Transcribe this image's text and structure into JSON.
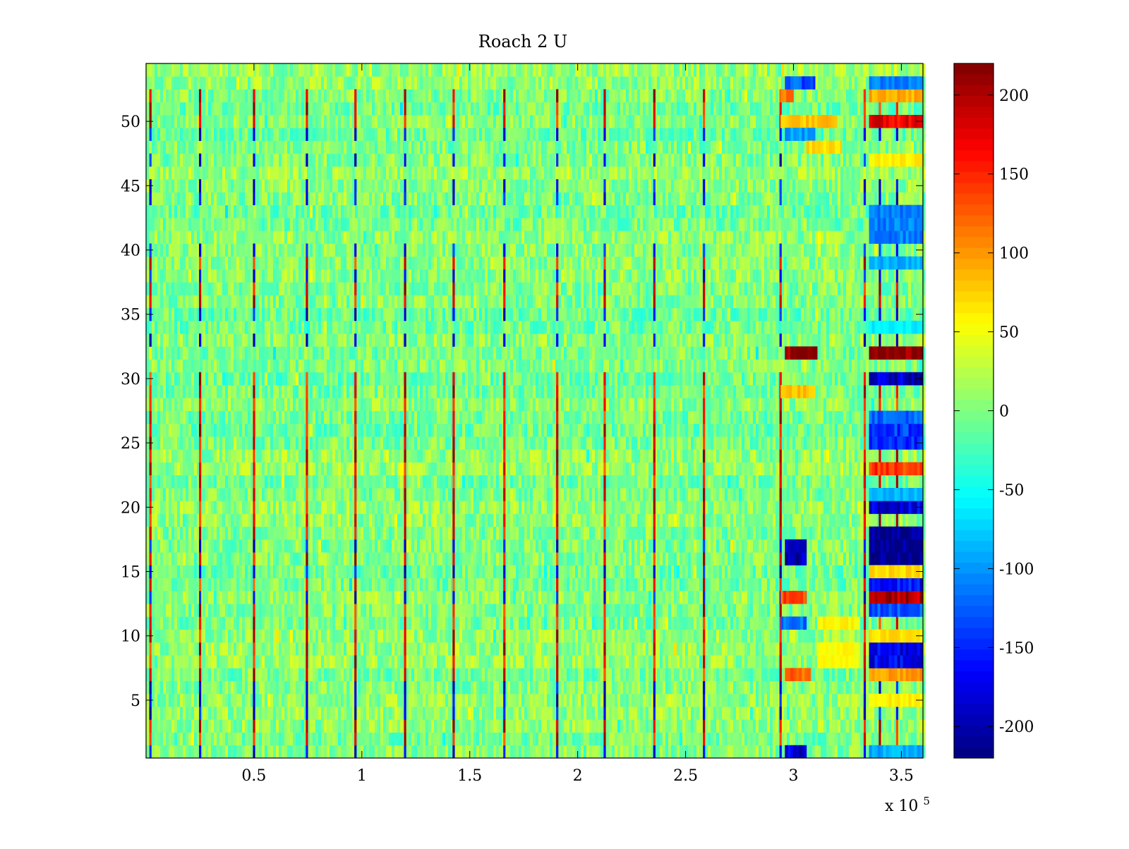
{
  "chart_data": {
    "type": "heatmap",
    "title": "Roach 2 U",
    "xlabel": "",
    "ylabel": "",
    "x_multiplier_label": "x 10",
    "x_multiplier_exponent": "5",
    "xlim": [
      0,
      3.6
    ],
    "ylim": [
      0.5,
      54.5
    ],
    "x_ticks": [
      0.5,
      1,
      1.5,
      2,
      2.5,
      3,
      3.5
    ],
    "x_tick_labels": [
      "0.5",
      "1",
      "1.5",
      "2",
      "2.5",
      "3",
      "3.5"
    ],
    "y_ticks": [
      5,
      10,
      15,
      20,
      25,
      30,
      35,
      40,
      45,
      50
    ],
    "y_tick_labels": [
      "5",
      "10",
      "15",
      "20",
      "25",
      "30",
      "35",
      "40",
      "45",
      "50"
    ],
    "rows": 54,
    "colormap": "jet",
    "clim": [
      -220,
      220
    ],
    "colorbar_ticks": [
      200,
      150,
      100,
      50,
      0,
      -50,
      -100,
      -150,
      -200
    ],
    "colorbar_tick_labels": [
      "200",
      "150",
      "100",
      "50",
      "0",
      "-50",
      "-100",
      "-150",
      "-200"
    ],
    "background_value_range": [
      -40,
      40
    ],
    "periodic_spike_columns_x": [
      0.02,
      0.25,
      0.5,
      0.745,
      0.97,
      1.2,
      1.425,
      1.66,
      1.905,
      2.125,
      2.355,
      2.585
    ],
    "late_spike_columns_x": [
      2.94,
      3.33,
      3.4,
      3.48
    ],
    "spike_rows_positive": [
      2,
      3,
      7,
      8,
      9,
      10,
      11,
      12,
      14,
      16,
      18,
      19,
      20,
      21,
      22,
      23,
      24,
      25,
      26,
      27,
      28,
      29,
      30,
      36,
      37,
      39,
      50,
      51,
      52
    ],
    "spike_rows_negative": [
      1,
      4,
      5,
      6,
      13,
      15,
      17,
      33,
      35,
      38,
      40,
      44,
      45,
      47,
      49
    ],
    "blocks": [
      {
        "row_from": 32,
        "row_to": 32,
        "x_from": 2.96,
        "x_to": 3.11,
        "value": 220
      },
      {
        "row_from": 32,
        "row_to": 32,
        "x_from": 3.35,
        "x_to": 3.6,
        "value": 220
      },
      {
        "row_from": 16,
        "row_to": 18,
        "x_from": 3.35,
        "x_to": 3.6,
        "value": -220
      },
      {
        "row_from": 16,
        "row_to": 17,
        "x_from": 2.96,
        "x_to": 3.06,
        "value": -200
      },
      {
        "row_from": 30,
        "row_to": 30,
        "x_from": 3.35,
        "x_to": 3.6,
        "value": -190
      },
      {
        "row_from": 20,
        "row_to": 20,
        "x_from": 3.35,
        "x_to": 3.6,
        "value": -180
      },
      {
        "row_from": 13,
        "row_to": 13,
        "x_from": 3.35,
        "x_to": 3.6,
        "value": 200
      },
      {
        "row_from": 14,
        "row_to": 14,
        "x_from": 3.35,
        "x_to": 3.6,
        "value": -160
      },
      {
        "row_from": 13,
        "row_to": 13,
        "x_from": 2.94,
        "x_to": 3.06,
        "value": 130
      },
      {
        "row_from": 23,
        "row_to": 23,
        "x_from": 3.35,
        "x_to": 3.6,
        "value": 140
      },
      {
        "row_from": 50,
        "row_to": 50,
        "x_from": 3.35,
        "x_to": 3.6,
        "value": 170
      },
      {
        "row_from": 50,
        "row_to": 50,
        "x_from": 2.94,
        "x_to": 3.2,
        "value": 80
      },
      {
        "row_from": 52,
        "row_to": 52,
        "x_from": 3.35,
        "x_to": 3.6,
        "value": 90
      },
      {
        "row_from": 52,
        "row_to": 52,
        "x_from": 2.94,
        "x_to": 3.0,
        "value": 110
      },
      {
        "row_from": 7,
        "row_to": 7,
        "x_from": 2.96,
        "x_to": 3.08,
        "value": 120
      },
      {
        "row_from": 7,
        "row_to": 7,
        "x_from": 3.35,
        "x_to": 3.6,
        "value": 100
      },
      {
        "row_from": 8,
        "row_to": 9,
        "x_from": 3.35,
        "x_to": 3.6,
        "value": -170
      },
      {
        "row_from": 10,
        "row_to": 10,
        "x_from": 3.35,
        "x_to": 3.6,
        "value": 70
      },
      {
        "row_from": 29,
        "row_to": 29,
        "x_from": 2.94,
        "x_to": 3.1,
        "value": 80
      },
      {
        "row_from": 26,
        "row_to": 26,
        "x_from": 3.35,
        "x_to": 3.6,
        "value": -140
      },
      {
        "row_from": 27,
        "row_to": 27,
        "x_from": 3.35,
        "x_to": 3.6,
        "value": -120
      },
      {
        "row_from": 21,
        "row_to": 21,
        "x_from": 3.35,
        "x_to": 3.6,
        "value": -90
      },
      {
        "row_from": 5,
        "row_to": 5,
        "x_from": 3.35,
        "x_to": 3.6,
        "value": 60
      },
      {
        "row_from": 1,
        "row_to": 1,
        "x_from": 2.96,
        "x_to": 3.06,
        "value": -180
      },
      {
        "row_from": 1,
        "row_to": 1,
        "x_from": 3.35,
        "x_to": 3.6,
        "value": -90
      },
      {
        "row_from": 53,
        "row_to": 53,
        "x_from": 2.96,
        "x_to": 3.1,
        "value": -130
      },
      {
        "row_from": 53,
        "row_to": 53,
        "x_from": 3.35,
        "x_to": 3.6,
        "value": -110
      },
      {
        "row_from": 49,
        "row_to": 49,
        "x_from": 2.96,
        "x_to": 3.1,
        "value": -100
      },
      {
        "row_from": 48,
        "row_to": 48,
        "x_from": 3.06,
        "x_to": 3.22,
        "value": 70
      },
      {
        "row_from": 47,
        "row_to": 47,
        "x_from": 3.35,
        "x_to": 3.6,
        "value": 60
      },
      {
        "row_from": 41,
        "row_to": 43,
        "x_from": 3.35,
        "x_to": 3.6,
        "value": -110
      },
      {
        "row_from": 39,
        "row_to": 39,
        "x_from": 3.35,
        "x_to": 3.6,
        "value": -90
      },
      {
        "row_from": 34,
        "row_to": 34,
        "x_from": 3.35,
        "x_to": 3.6,
        "value": -60
      },
      {
        "row_from": 11,
        "row_to": 11,
        "x_from": 2.94,
        "x_to": 3.06,
        "value": -120
      },
      {
        "row_from": 11,
        "row_to": 11,
        "x_from": 3.11,
        "x_to": 3.3,
        "value": 60
      },
      {
        "row_from": 8,
        "row_to": 9,
        "x_from": 3.11,
        "x_to": 3.3,
        "value": 55
      },
      {
        "row_from": 15,
        "row_to": 15,
        "x_from": 3.35,
        "x_to": 3.6,
        "value": 70
      },
      {
        "row_from": 25,
        "row_to": 25,
        "x_from": 3.35,
        "x_to": 3.6,
        "value": -150
      },
      {
        "row_from": 12,
        "row_to": 12,
        "x_from": 3.35,
        "x_to": 3.6,
        "value": -130
      }
    ]
  }
}
